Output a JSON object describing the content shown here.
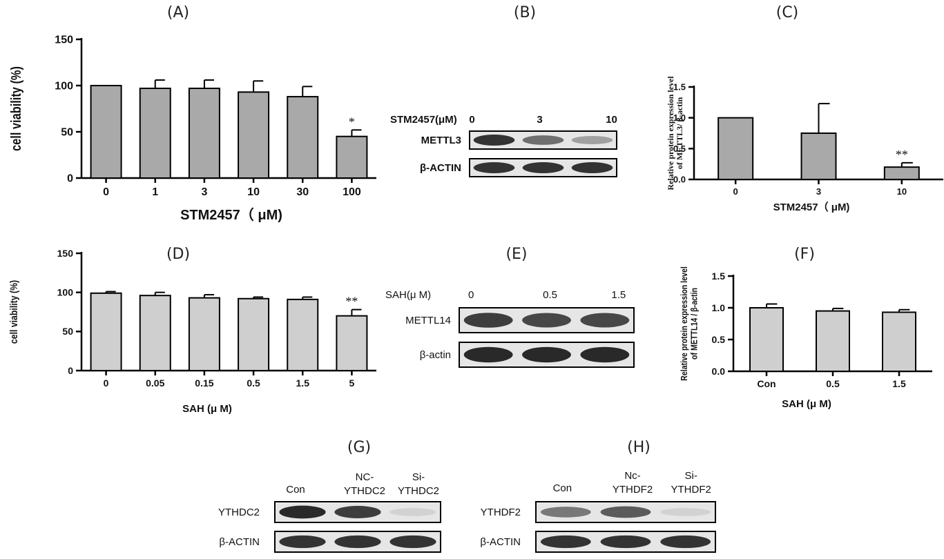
{
  "panels": {
    "A": {
      "label": "(A)"
    },
    "B": {
      "label": "(B)",
      "treatment_label": "STM2457(μM)",
      "lanes": [
        "0",
        "3",
        "10"
      ],
      "rows": [
        "METTL3",
        "β-ACTIN"
      ],
      "band_intensity": {
        "METTL3": [
          0.9,
          0.6,
          0.35
        ],
        "β-ACTIN": [
          0.9,
          0.9,
          0.9
        ]
      }
    },
    "C": {
      "label": "(C)"
    },
    "D": {
      "label": "(D)"
    },
    "E": {
      "label": "(E)",
      "treatment_label": "SAH(μ M)",
      "lanes": [
        "0",
        "0.5",
        "1.5"
      ],
      "rows": [
        "METTL14",
        "β-actin"
      ],
      "band_intensity": {
        "METTL14": [
          0.85,
          0.8,
          0.8
        ],
        "β-actin": [
          0.95,
          0.95,
          0.95
        ]
      }
    },
    "F": {
      "label": "(F)"
    },
    "G": {
      "label": "(G)",
      "lanes": [
        "Con",
        "NC-\nYTHDC2",
        "Si-\nYTHDC2"
      ],
      "rows": [
        "YTHDC2",
        "β-ACTIN"
      ],
      "band_intensity": {
        "YTHDC2": [
          0.95,
          0.85,
          0.1
        ],
        "β-ACTIN": [
          0.9,
          0.9,
          0.9
        ]
      }
    },
    "H": {
      "label": "(H)",
      "lanes": [
        "Con",
        "Nc-\nYTHDF2",
        "Si-\nYTHDF2"
      ],
      "rows": [
        "YTHDF2",
        "β-ACTIN"
      ],
      "band_intensity": {
        "YTHDF2": [
          0.55,
          0.7,
          0.1
        ],
        "β-ACTIN": [
          0.9,
          0.9,
          0.9
        ]
      }
    }
  },
  "chart_data": [
    {
      "id": "A",
      "type": "bar",
      "categories": [
        "0",
        "1",
        "3",
        "10",
        "30",
        "100"
      ],
      "values": [
        100,
        97,
        97,
        93,
        88,
        45
      ],
      "errors": [
        0,
        9,
        9,
        12,
        11,
        7
      ],
      "annotations": [
        "",
        "",
        "",
        "",
        "",
        "*"
      ],
      "ylabel": "cell viability (%)",
      "xlabel": "STM2457（ μM)",
      "ylim": [
        0,
        150
      ],
      "yticks": [
        0,
        50,
        100,
        150
      ],
      "bar_color": "#a9a9a9"
    },
    {
      "id": "C",
      "type": "bar",
      "categories": [
        "0",
        "3",
        "10"
      ],
      "values": [
        1.0,
        0.75,
        0.2
      ],
      "errors": [
        0,
        0.48,
        0.07
      ],
      "annotations": [
        "",
        "",
        "**"
      ],
      "ylabel": "Relative protein expression level\nof METTL3/ β-actin",
      "xlabel": "STM2457（ μM)",
      "ylim": [
        0,
        1.5
      ],
      "yticks": [
        "0.0",
        "0.5",
        "1.0",
        "1.5"
      ],
      "bar_color": "#a9a9a9"
    },
    {
      "id": "D",
      "type": "bar",
      "categories": [
        "0",
        "0.05",
        "0.15",
        "0.5",
        "1.5",
        "5"
      ],
      "values": [
        99,
        96,
        93,
        92,
        91,
        70
      ],
      "errors": [
        2,
        4,
        4,
        2,
        3,
        8
      ],
      "annotations": [
        "",
        "",
        "",
        "",
        "",
        "**"
      ],
      "ylabel": "cell viability (%)",
      "xlabel": "SAH (μ M)",
      "ylim": [
        0,
        150
      ],
      "yticks": [
        0,
        50,
        100,
        150
      ],
      "bar_color": "#cfcfcf"
    },
    {
      "id": "F",
      "type": "bar",
      "categories": [
        "Con",
        "0.5",
        "1.5"
      ],
      "values": [
        1.0,
        0.95,
        0.93
      ],
      "errors": [
        0.06,
        0.04,
        0.04
      ],
      "annotations": [
        "",
        "",
        ""
      ],
      "ylabel": "Relative protein expression level\nof METTL14 / β-actin",
      "xlabel": "SAH (μ M)",
      "ylim": [
        0,
        1.5
      ],
      "yticks": [
        "0.0",
        "0.5",
        "1.0",
        "1.5"
      ],
      "bar_color": "#cfcfcf"
    }
  ]
}
